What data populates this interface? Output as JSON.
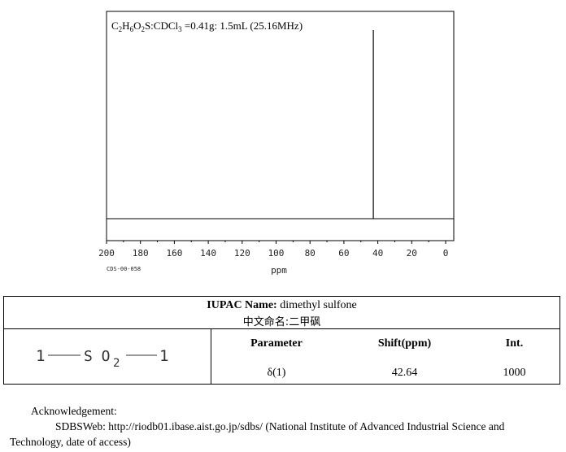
{
  "spectrum_title": "C2H6O2S:CDCl3 =0.41g: 1.5mL (25.16MHz)",
  "chart_data": {
    "type": "line",
    "xlabel": "ppm",
    "xlim": [
      200,
      0
    ],
    "xticks": [
      200,
      180,
      160,
      140,
      120,
      100,
      80,
      60,
      40,
      20,
      0
    ],
    "peaks": [
      {
        "x": 42.64,
        "height": 1000
      }
    ],
    "grid": false,
    "code": "CDS-00-058"
  },
  "iupac": {
    "label": "IUPAC Name:",
    "name": "dimethyl sulfone",
    "chinese_label": "中文命名:",
    "chinese_name": "二甲砜"
  },
  "structure": {
    "left": "1",
    "center": "S O",
    "subscript": "2",
    "right": "1"
  },
  "table": {
    "headers": [
      "Parameter",
      "Shift(ppm)",
      "Int."
    ],
    "rows": [
      [
        "δ(1)",
        "42.64",
        "1000"
      ]
    ]
  },
  "acknowledgement": {
    "title": "Acknowledgement:",
    "body": "SDBSWeb: http://riodb01.ibase.aist.go.jp/sdbs/ (National Institute of Advanced Industrial Science and Technology, date of access)"
  }
}
